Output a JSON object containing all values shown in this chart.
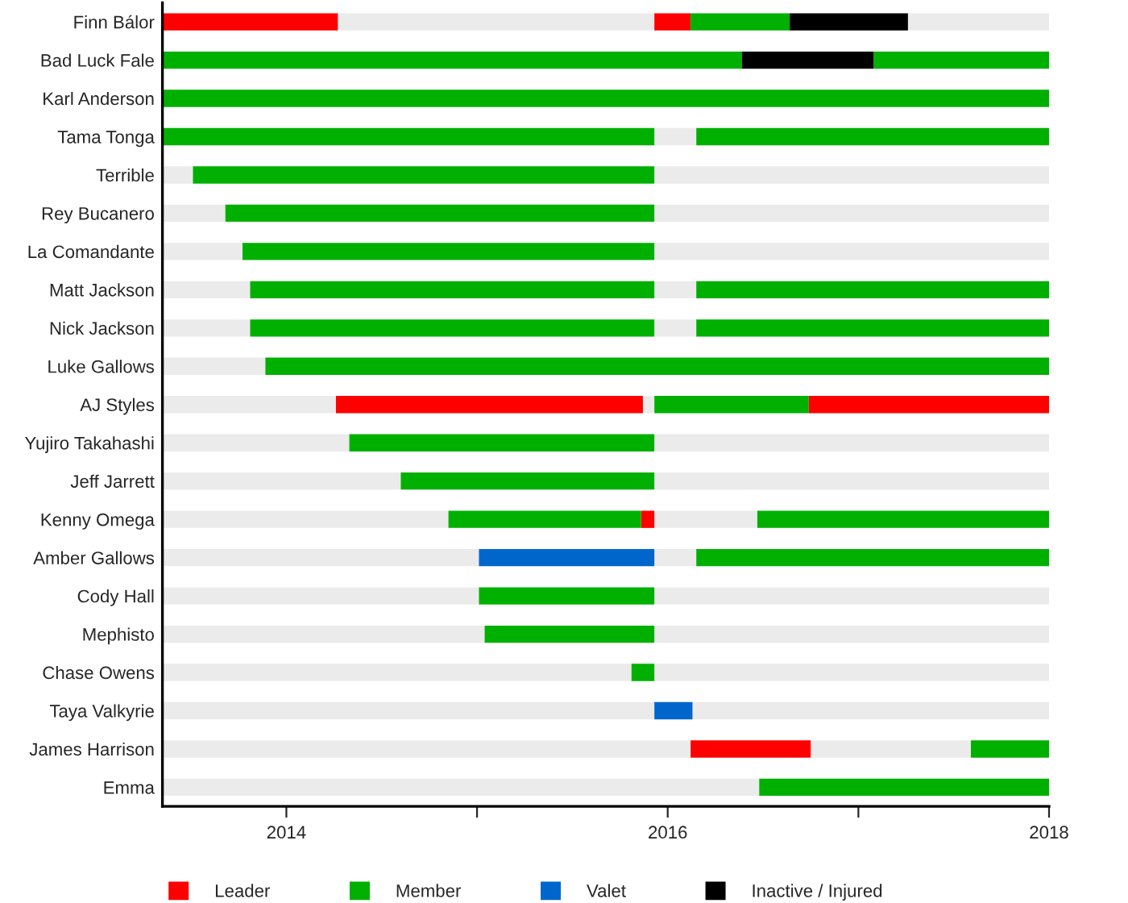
{
  "chart_data": {
    "type": "bar",
    "orientation": "horizontal",
    "categories": [
      "Finn Bálor",
      "Bad Luck Fale",
      "Karl Anderson",
      "Tama Tonga",
      "Terrible",
      "Rey Bucanero",
      "La Comandante",
      "Matt Jackson",
      "Nick Jackson",
      "Luke Gallows",
      "AJ Styles",
      "Yujiro Takahashi",
      "Jeff Jarrett",
      "Kenny Omega",
      "Amber Gallows",
      "Cody Hall",
      "Mephisto",
      "Chase Owens",
      "Taya Valkyrie",
      "James Harrison",
      "Emma"
    ],
    "series": [
      {
        "color": "#ebebeb",
        "base": [
          null,
          null,
          null,
          null,
          2013.35,
          2013.35,
          2013.35,
          2013.35,
          2013.35,
          2013.35,
          2013.35,
          2013.35,
          2013.35,
          2013.35,
          2013.35,
          2013.35,
          2013.35,
          2013.35,
          2013.35,
          2013.35,
          2013.35
        ],
        "values": [
          null,
          null,
          null,
          null,
          0.16,
          0.33,
          0.42,
          0.46,
          0.46,
          0.54,
          0.91,
          0.98,
          1.25,
          1.5,
          1.66,
          1.66,
          1.69,
          2.46,
          2.58,
          2.77,
          3.13
        ]
      },
      {
        "color": "#ebebeb",
        "base": [
          2014.27,
          null,
          null,
          2015.93,
          null,
          null,
          null,
          2015.93,
          2015.93,
          null,
          2015.87,
          null,
          null,
          2015.93,
          2015.93,
          null,
          null,
          null,
          null,
          2016.75,
          null
        ],
        "values": [
          1.66,
          null,
          null,
          0.22,
          null,
          null,
          null,
          0.22,
          0.22,
          null,
          0.06,
          null,
          null,
          0.54,
          0.22,
          null,
          null,
          null,
          null,
          0.84,
          null
        ]
      },
      {
        "color": "#ebebeb",
        "base": [
          2017.26,
          null,
          null,
          null,
          2015.93,
          2015.93,
          2015.93,
          null,
          null,
          null,
          null,
          2015.93,
          2015.93,
          null,
          null,
          2015.93,
          2015.93,
          2015.93,
          2016.13,
          null,
          null
        ],
        "values": [
          0.74,
          null,
          null,
          null,
          2.07,
          2.07,
          2.07,
          null,
          null,
          null,
          null,
          2.07,
          2.07,
          null,
          null,
          2.07,
          2.07,
          2.07,
          1.87,
          null,
          null
        ]
      },
      {
        "name": "Leader",
        "color": "#ff0000",
        "base": [
          2013.35,
          null,
          null,
          null,
          null,
          null,
          null,
          null,
          null,
          null,
          2014.26,
          null,
          null,
          2015.86,
          null,
          null,
          null,
          null,
          null,
          2016.12,
          null
        ],
        "values": [
          0.92,
          null,
          null,
          null,
          null,
          null,
          null,
          null,
          null,
          null,
          1.61,
          null,
          null,
          0.07,
          null,
          null,
          null,
          null,
          null,
          0.63,
          null
        ]
      },
      {
        "color": "#ff0000",
        "base": [
          2015.93,
          null,
          null,
          null,
          null,
          null,
          null,
          null,
          null,
          null,
          2016.74,
          null,
          null,
          null,
          null,
          null,
          null,
          null,
          null,
          null,
          null
        ],
        "values": [
          0.19,
          null,
          null,
          null,
          null,
          null,
          null,
          null,
          null,
          null,
          1.26,
          null,
          null,
          null,
          null,
          null,
          null,
          null,
          null,
          null,
          null
        ]
      },
      {
        "name": "Member",
        "color": "#00b000",
        "base": [
          2016.12,
          2013.35,
          2013.35,
          2013.35,
          2013.51,
          2013.68,
          2013.77,
          2013.81,
          2013.81,
          2013.89,
          2015.93,
          2014.33,
          2014.6,
          2014.85,
          2016.15,
          2015.01,
          2015.04,
          2015.81,
          null,
          2017.59,
          2016.48
        ],
        "values": [
          0.52,
          3.04,
          4.65,
          2.58,
          2.42,
          2.25,
          2.16,
          2.12,
          2.12,
          4.11,
          0.81,
          1.6,
          1.33,
          1.01,
          1.85,
          0.92,
          0.89,
          0.12,
          null,
          0.41,
          1.52
        ]
      },
      {
        "color": "#00b000",
        "base": [
          null,
          2017.08,
          null,
          2016.15,
          null,
          null,
          null,
          2016.15,
          2016.15,
          null,
          null,
          null,
          null,
          2016.47,
          null,
          null,
          null,
          null,
          null,
          null,
          null
        ],
        "values": [
          null,
          0.92,
          null,
          1.85,
          null,
          null,
          null,
          1.85,
          1.85,
          null,
          null,
          null,
          null,
          1.53,
          null,
          null,
          null,
          null,
          null,
          null,
          null
        ]
      },
      {
        "name": "Valet",
        "color": "#0066cc",
        "base": [
          null,
          null,
          null,
          null,
          null,
          null,
          null,
          null,
          null,
          null,
          null,
          null,
          null,
          null,
          2015.01,
          null,
          null,
          null,
          2015.93,
          null,
          null
        ],
        "values": [
          null,
          null,
          null,
          null,
          null,
          null,
          null,
          null,
          null,
          null,
          null,
          null,
          null,
          null,
          0.92,
          null,
          null,
          null,
          0.2,
          null,
          null
        ]
      },
      {
        "name": "Inactive / Injured",
        "color": "#000000",
        "base": [
          2016.64,
          2016.39,
          null,
          null,
          null,
          null,
          null,
          null,
          null,
          null,
          null,
          null,
          null,
          null,
          null,
          null,
          null,
          null,
          null,
          null,
          null
        ],
        "values": [
          0.62,
          0.69,
          null,
          null,
          null,
          null,
          null,
          null,
          null,
          null,
          null,
          null,
          null,
          null,
          null,
          null,
          null,
          null,
          null,
          null,
          null
        ]
      }
    ],
    "xlim": [
      2013.35,
      2018
    ],
    "xticks": [
      2014,
      {
        "value": 2015,
        "label": null
      },
      2016,
      {
        "value": 2017,
        "label": null
      },
      2018
    ],
    "legend": "bottom",
    "grid": false
  }
}
